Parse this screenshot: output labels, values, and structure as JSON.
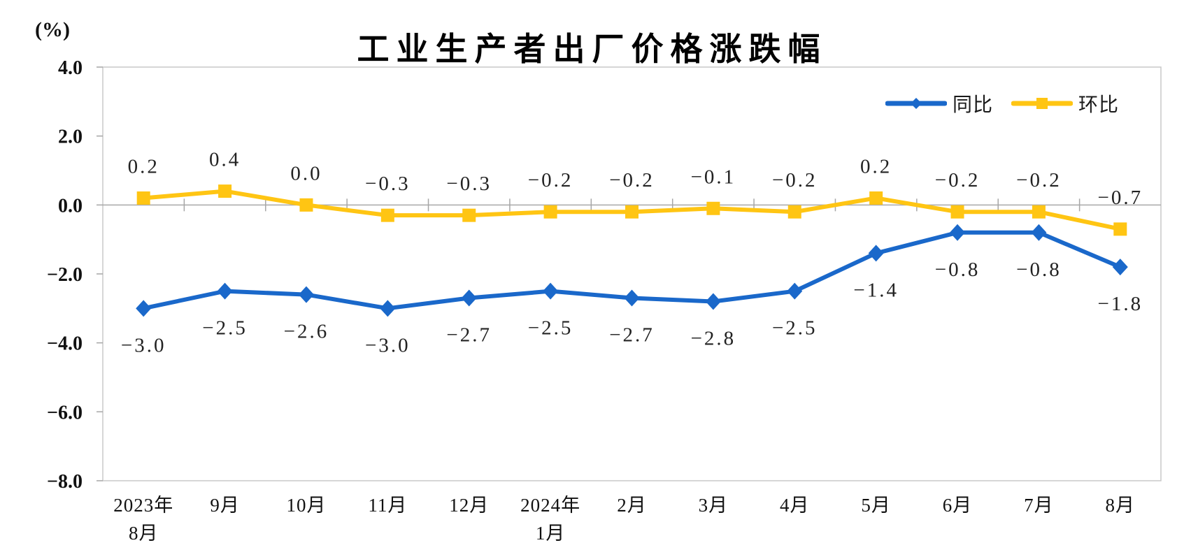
{
  "chart_data": {
    "type": "line",
    "title": "工业生产者出厂价格涨跌幅",
    "ylabel": "(%)",
    "xlabel": "",
    "ylim": [
      -8.0,
      4.0
    ],
    "yticks": [
      4.0,
      2.0,
      0.0,
      -2.0,
      -4.0,
      -6.0,
      -8.0
    ],
    "grid": false,
    "legend_position": "top-right-inside",
    "categories": [
      "2023年8月",
      "9月",
      "10月",
      "11月",
      "12月",
      "2024年1月",
      "2月",
      "3月",
      "4月",
      "5月",
      "6月",
      "7月",
      "8月"
    ],
    "category_label_lines": [
      [
        "2023年",
        "8月"
      ],
      [
        "9月"
      ],
      [
        "10月"
      ],
      [
        "11月"
      ],
      [
        "12月"
      ],
      [
        "2024年",
        "1月"
      ],
      [
        "2月"
      ],
      [
        "3月"
      ],
      [
        "4月"
      ],
      [
        "5月"
      ],
      [
        "6月"
      ],
      [
        "7月"
      ],
      [
        "8月"
      ]
    ],
    "series": [
      {
        "key": "yoy",
        "name": "同比",
        "color": "#1A68CA",
        "marker": "diamond",
        "label_position": "below",
        "values": [
          -3.0,
          -2.5,
          -2.6,
          -3.0,
          -2.7,
          -2.5,
          -2.7,
          -2.8,
          -2.5,
          -1.4,
          -0.8,
          -0.8,
          -1.8
        ]
      },
      {
        "key": "mom",
        "name": "环比",
        "color": "#FFC513",
        "marker": "square",
        "label_position": "above",
        "values": [
          0.2,
          0.4,
          0.0,
          -0.3,
          -0.3,
          -0.2,
          -0.2,
          -0.1,
          -0.2,
          0.2,
          -0.2,
          -0.2,
          -0.7
        ]
      }
    ],
    "axis_colors": {
      "border": "#C8C8C8",
      "zero_line": "#A9A9A9",
      "tick": "#A6A6A6"
    }
  }
}
